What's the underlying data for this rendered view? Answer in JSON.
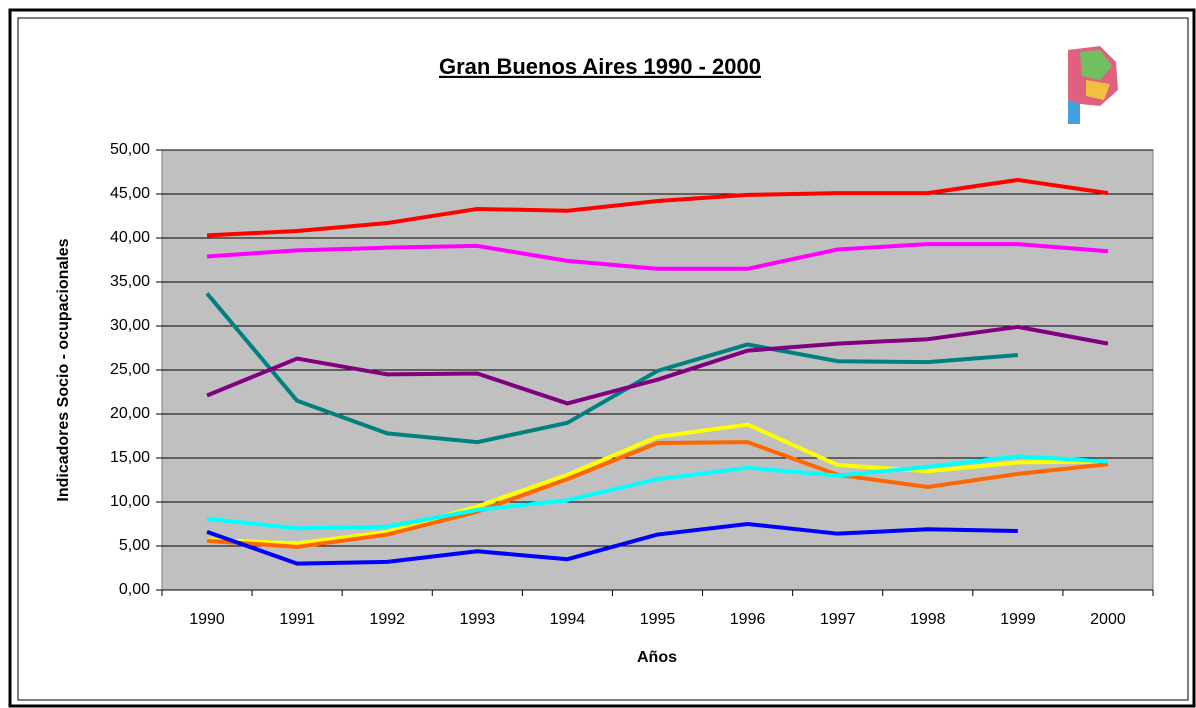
{
  "chart_data": {
    "type": "line",
    "title": "Gran Buenos Aires 1990 - 2000",
    "x_label": "Años",
    "y_label": "Indicadores Socio - ocupacionales",
    "categories": [
      "1990",
      "1991",
      "1992",
      "1993",
      "1994",
      "1995",
      "1996",
      "1997",
      "1998",
      "1999",
      "2000"
    ],
    "series": [
      {
        "color": "#ff0000",
        "values": [
          40.3,
          40.8,
          41.7,
          43.3,
          43.1,
          44.2,
          44.9,
          45.1,
          45.1,
          46.6,
          45.1
        ]
      },
      {
        "color": "#ff00ff",
        "values": [
          37.9,
          38.6,
          38.9,
          39.1,
          37.4,
          36.5,
          36.5,
          38.7,
          39.3,
          39.3,
          38.5
        ]
      },
      {
        "color": "#008080",
        "values": [
          33.7,
          21.5,
          17.8,
          16.8,
          19.0,
          24.9,
          27.9,
          26.0,
          25.9,
          26.7,
          null
        ]
      },
      {
        "color": "#800080",
        "values": [
          22.1,
          26.3,
          24.5,
          24.6,
          21.2,
          23.9,
          27.2,
          28.0,
          28.5,
          29.9,
          28.0
        ]
      },
      {
        "color": "#ffff00",
        "values": [
          5.7,
          5.3,
          6.6,
          9.5,
          13.1,
          17.4,
          18.8,
          14.2,
          13.5,
          14.5,
          14.6
        ]
      },
      {
        "color": "#ff6600",
        "values": [
          5.6,
          4.9,
          6.3,
          8.9,
          12.6,
          16.7,
          16.8,
          13.1,
          11.7,
          13.2,
          14.3
        ]
      },
      {
        "color": "#00ffff",
        "values": [
          8.1,
          7.0,
          7.2,
          9.1,
          10.2,
          12.6,
          13.9,
          13.0,
          14.0,
          15.2,
          14.6
        ]
      },
      {
        "color": "#0000ff",
        "values": [
          6.6,
          3.0,
          3.2,
          4.4,
          3.5,
          6.3,
          7.5,
          6.4,
          6.9,
          6.7,
          null
        ]
      }
    ],
    "ylim": [
      0,
      50
    ],
    "yticks": [
      {
        "value": 0,
        "label": "0,00"
      },
      {
        "value": 5,
        "label": "5,00"
      },
      {
        "value": 10,
        "label": "10,00"
      },
      {
        "value": 15,
        "label": "15,00"
      },
      {
        "value": 20,
        "label": "20,00"
      },
      {
        "value": 25,
        "label": "25,00"
      },
      {
        "value": 30,
        "label": "30,00"
      },
      {
        "value": 35,
        "label": "35,00"
      },
      {
        "value": 40,
        "label": "40,00"
      },
      {
        "value": 45,
        "label": "45,00"
      },
      {
        "value": 50,
        "label": "50,00"
      }
    ],
    "grid": true,
    "plot_background": "#c0c0c0"
  }
}
